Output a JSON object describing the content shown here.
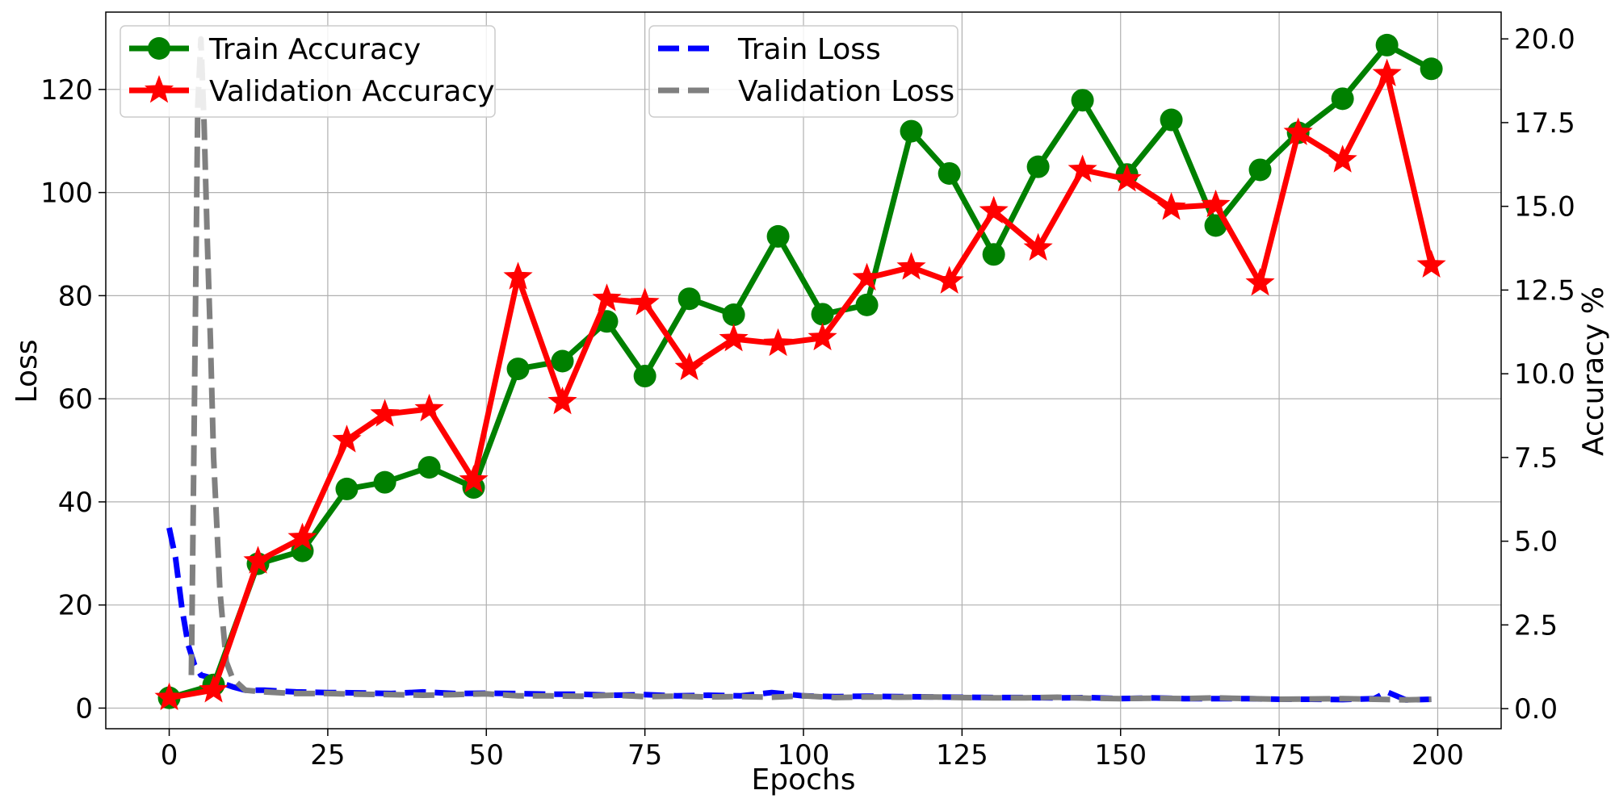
{
  "chart_data": {
    "type": "line",
    "xlabel": "Epochs",
    "ylabel_left": "Loss",
    "ylabel_right": "Accuracy %",
    "xlim": [
      -10,
      210
    ],
    "ylim_left": [
      -4,
      135
    ],
    "ylim_right": [
      -0.6,
      20.8
    ],
    "x_ticks": [
      0,
      25,
      50,
      75,
      100,
      125,
      150,
      175,
      200
    ],
    "y_ticks_left": [
      0,
      20,
      40,
      60,
      80,
      100,
      120
    ],
    "y_ticks_right": [
      "0.0",
      "2.5",
      "5.0",
      "7.5",
      "10.0",
      "12.5",
      "15.0",
      "17.5",
      "20.0"
    ],
    "grid": true,
    "legends": {
      "accuracy": {
        "placement": "top-left",
        "entries": [
          "Train Accuracy",
          "Validation Accuracy"
        ]
      },
      "loss": {
        "placement": "top-center",
        "entries": [
          "Train Loss",
          "Validation Loss"
        ]
      }
    },
    "series": [
      {
        "name": "Train Accuracy",
        "axis": "left",
        "color": "#008000",
        "marker": "circle",
        "style": "solid",
        "x": [
          0,
          7,
          14,
          21,
          28,
          34,
          41,
          48,
          55,
          62,
          69,
          75,
          82,
          89,
          96,
          103,
          110,
          117,
          123,
          130,
          137,
          144,
          151,
          158,
          165,
          172,
          178,
          185,
          192,
          199
        ],
        "y": [
          2,
          4.5,
          28,
          30.5,
          42.5,
          43.8,
          46.7,
          42.8,
          65.8,
          67.3,
          75,
          64.4,
          79.4,
          76.3,
          91.5,
          76.4,
          78.2,
          111.9,
          103.7,
          88,
          105,
          117.9,
          103.5,
          114.1,
          93.6,
          104.4,
          111.6,
          118.2,
          128.6,
          124
        ]
      },
      {
        "name": "Validation Accuracy",
        "axis": "left",
        "color": "#ff0000",
        "marker": "star",
        "style": "solid",
        "x": [
          0,
          7,
          14,
          21,
          28,
          34,
          41,
          48,
          55,
          62,
          69,
          75,
          82,
          89,
          96,
          103,
          110,
          117,
          123,
          130,
          137,
          144,
          151,
          158,
          165,
          172,
          178,
          185,
          192,
          199
        ],
        "y": [
          2,
          3.5,
          28.5,
          33,
          52,
          57,
          58,
          44.2,
          83.6,
          59.4,
          79.4,
          78.6,
          66,
          71.6,
          70.7,
          71.8,
          83.4,
          85.5,
          82.8,
          96.4,
          89.2,
          104.4,
          102.6,
          97.1,
          97.6,
          82.4,
          111.6,
          106.3,
          123,
          85.9
        ]
      },
      {
        "name": "Train Loss",
        "axis": "right",
        "color": "#0000ff",
        "style": "dashed",
        "x": [
          0,
          1,
          2,
          3,
          4,
          5,
          6,
          7,
          8,
          10,
          12,
          15,
          20,
          25,
          30,
          35,
          40,
          45,
          50,
          55,
          60,
          65,
          70,
          75,
          80,
          85,
          90,
          95,
          100,
          105,
          110,
          115,
          120,
          125,
          130,
          135,
          140,
          145,
          150,
          155,
          160,
          165,
          170,
          175,
          180,
          185,
          190,
          192,
          195,
          199
        ],
        "y": [
          5.4,
          4.5,
          3.0,
          1.9,
          1.3,
          1.0,
          0.95,
          0.88,
          0.78,
          0.65,
          0.55,
          0.55,
          0.5,
          0.48,
          0.47,
          0.45,
          0.5,
          0.45,
          0.46,
          0.45,
          0.43,
          0.43,
          0.4,
          0.42,
          0.38,
          0.4,
          0.38,
          0.48,
          0.38,
          0.36,
          0.37,
          0.36,
          0.35,
          0.34,
          0.33,
          0.33,
          0.32,
          0.33,
          0.3,
          0.32,
          0.3,
          0.3,
          0.3,
          0.28,
          0.28,
          0.27,
          0.3,
          0.5,
          0.26,
          0.28
        ]
      },
      {
        "name": "Validation Loss",
        "axis": "right",
        "color": "#808080",
        "style": "dashed",
        "x": [
          3.5,
          4.5,
          5,
          5.5,
          6,
          6.5,
          7,
          8,
          9,
          10,
          12,
          15,
          20,
          25,
          30,
          35,
          40,
          45,
          50,
          55,
          60,
          65,
          70,
          75,
          80,
          85,
          90,
          95,
          100,
          105,
          110,
          115,
          120,
          125,
          130,
          135,
          140,
          145,
          150,
          155,
          160,
          165,
          170,
          175,
          180,
          185,
          190,
          195,
          199
        ],
        "y": [
          1.0,
          18.0,
          20.0,
          17.5,
          14.0,
          11.0,
          7.5,
          3.5,
          1.4,
          0.9,
          0.55,
          0.5,
          0.45,
          0.45,
          0.43,
          0.42,
          0.4,
          0.42,
          0.44,
          0.38,
          0.38,
          0.37,
          0.4,
          0.36,
          0.37,
          0.35,
          0.36,
          0.34,
          0.38,
          0.33,
          0.35,
          0.34,
          0.35,
          0.33,
          0.32,
          0.32,
          0.34,
          0.31,
          0.3,
          0.31,
          0.3,
          0.32,
          0.3,
          0.28,
          0.29,
          0.3,
          0.28,
          0.26,
          0.28
        ]
      }
    ]
  }
}
